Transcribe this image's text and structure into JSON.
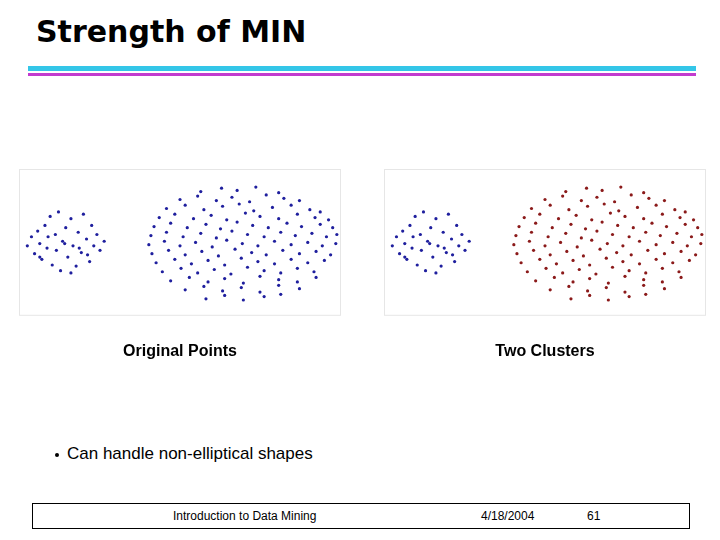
{
  "slide": {
    "title": "Strength of MIN",
    "bullets": [
      "Can handle non-elliptical shapes"
    ],
    "footer": {
      "text": "Introduction to Data Mining",
      "date": "4/18/2004",
      "page": 61
    }
  },
  "chart_data": [
    {
      "type": "scatter",
      "title": "Original Points",
      "xlim": [
        0,
        310
      ],
      "ylim": [
        0,
        130
      ],
      "grid": false,
      "tick_labels": false,
      "series": [
        {
          "color": "#1f1f9e",
          "marker": "circle",
          "x": [
            8,
            12,
            15,
            18,
            20,
            22,
            25,
            27,
            30,
            32,
            35,
            36,
            38,
            40,
            42,
            45,
            47,
            50,
            52,
            55,
            57,
            60,
            62,
            65,
            68,
            70,
            72,
            75,
            78,
            82,
            28,
            44,
            58,
            66,
            20,
            50
          ],
          "y": [
            62,
            70,
            55,
            75,
            64,
            50,
            80,
            60,
            88,
            45,
            72,
            58,
            92,
            40,
            66,
            78,
            52,
            86,
            62,
            44,
            74,
            56,
            90,
            68,
            48,
            80,
            62,
            72,
            58,
            66,
            70,
            64,
            60,
            54,
            52,
            38
          ]
        },
        {
          "color": "#1f1f9e",
          "marker": "circle",
          "x": [
            175,
            195,
            210,
            228,
            250,
            155,
            172,
            190,
            205,
            222,
            238,
            255,
            270,
            142,
            160,
            178,
            196,
            212,
            226,
            244,
            262,
            280,
            290,
            135,
            150,
            168,
            185,
            200,
            218,
            232,
            250,
            268,
            285,
            298,
            130,
            146,
            162,
            180,
            194,
            210,
            225,
            240,
            258,
            272,
            290,
            302,
            127,
            142,
            158,
            175,
            190,
            205,
            220,
            236,
            252,
            266,
            282,
            296,
            306,
            125,
            140,
            155,
            170,
            186,
            200,
            215,
            230,
            246,
            262,
            278,
            292,
            305,
            128,
            144,
            160,
            176,
            192,
            208,
            224,
            238,
            254,
            270,
            286,
            300,
            132,
            150,
            166,
            182,
            198,
            214,
            230,
            246,
            262,
            278,
            294,
            138,
            156,
            172,
            188,
            204,
            220,
            236,
            252,
            268,
            284,
            146,
            164,
            182,
            198,
            216,
            232,
            250,
            268,
            286,
            160,
            178,
            196,
            214,
            232,
            250,
            270,
            180,
            198,
            216,
            236,
            252
          ],
          "y": [
            110,
            113,
            111,
            114,
            109,
            103,
            106,
            102,
            105,
            101,
            107,
            104,
            102,
            95,
            98,
            94,
            97,
            99,
            93,
            96,
            98,
            94,
            92,
            87,
            90,
            86,
            89,
            85,
            91,
            88,
            86,
            90,
            87,
            85,
            79,
            82,
            78,
            81,
            77,
            83,
            80,
            78,
            82,
            79,
            81,
            78,
            71,
            74,
            70,
            73,
            69,
            75,
            72,
            70,
            74,
            71,
            73,
            70,
            72,
            63,
            66,
            62,
            65,
            61,
            67,
            64,
            62,
            66,
            63,
            65,
            62,
            64,
            55,
            58,
            54,
            57,
            53,
            59,
            56,
            54,
            58,
            55,
            57,
            54,
            47,
            50,
            46,
            49,
            45,
            51,
            48,
            46,
            50,
            47,
            49,
            39,
            42,
            38,
            41,
            37,
            43,
            40,
            38,
            42,
            39,
            31,
            34,
            30,
            33,
            29,
            35,
            32,
            30,
            34,
            23,
            26,
            22,
            25,
            21,
            27,
            24,
            15,
            18,
            14,
            17,
            19
          ]
        }
      ]
    },
    {
      "type": "scatter",
      "title": "Two Clusters",
      "xlim": [
        0,
        310
      ],
      "ylim": [
        0,
        130
      ],
      "grid": false,
      "tick_labels": false,
      "series": [
        {
          "color": "#1f1f9e",
          "marker": "circle",
          "x": [
            8,
            12,
            15,
            18,
            20,
            22,
            25,
            27,
            30,
            32,
            35,
            36,
            38,
            40,
            42,
            45,
            47,
            50,
            52,
            55,
            57,
            60,
            62,
            65,
            68,
            70,
            72,
            75,
            78,
            82,
            28,
            44,
            58,
            66,
            20,
            50
          ],
          "y": [
            62,
            70,
            55,
            75,
            64,
            50,
            80,
            60,
            88,
            45,
            72,
            58,
            92,
            40,
            66,
            78,
            52,
            86,
            62,
            44,
            74,
            56,
            90,
            68,
            48,
            80,
            62,
            72,
            58,
            66,
            70,
            64,
            60,
            54,
            52,
            38
          ]
        },
        {
          "color": "#8b1a1a",
          "marker": "circle",
          "x": [
            175,
            195,
            210,
            228,
            250,
            155,
            172,
            190,
            205,
            222,
            238,
            255,
            270,
            142,
            160,
            178,
            196,
            212,
            226,
            244,
            262,
            280,
            290,
            135,
            150,
            168,
            185,
            200,
            218,
            232,
            250,
            268,
            285,
            298,
            130,
            146,
            162,
            180,
            194,
            210,
            225,
            240,
            258,
            272,
            290,
            302,
            127,
            142,
            158,
            175,
            190,
            205,
            220,
            236,
            252,
            266,
            282,
            296,
            306,
            125,
            140,
            155,
            170,
            186,
            200,
            215,
            230,
            246,
            262,
            278,
            292,
            305,
            128,
            144,
            160,
            176,
            192,
            208,
            224,
            238,
            254,
            270,
            286,
            300,
            132,
            150,
            166,
            182,
            198,
            214,
            230,
            246,
            262,
            278,
            294,
            138,
            156,
            172,
            188,
            204,
            220,
            236,
            252,
            268,
            284,
            146,
            164,
            182,
            198,
            216,
            232,
            250,
            268,
            286,
            160,
            178,
            196,
            214,
            232,
            250,
            270,
            180,
            198,
            216,
            236,
            252
          ],
          "y": [
            110,
            113,
            111,
            114,
            109,
            103,
            106,
            102,
            105,
            101,
            107,
            104,
            102,
            95,
            98,
            94,
            97,
            99,
            93,
            96,
            98,
            94,
            92,
            87,
            90,
            86,
            89,
            85,
            91,
            88,
            86,
            90,
            87,
            85,
            79,
            82,
            78,
            81,
            77,
            83,
            80,
            78,
            82,
            79,
            81,
            78,
            71,
            74,
            70,
            73,
            69,
            75,
            72,
            70,
            74,
            71,
            73,
            70,
            72,
            63,
            66,
            62,
            65,
            61,
            67,
            64,
            62,
            66,
            63,
            65,
            62,
            64,
            55,
            58,
            54,
            57,
            53,
            59,
            56,
            54,
            58,
            55,
            57,
            54,
            47,
            50,
            46,
            49,
            45,
            51,
            48,
            46,
            50,
            47,
            49,
            39,
            42,
            38,
            41,
            37,
            43,
            40,
            38,
            42,
            39,
            31,
            34,
            30,
            33,
            29,
            35,
            32,
            30,
            34,
            23,
            26,
            22,
            25,
            21,
            27,
            24,
            15,
            18,
            14,
            17,
            19
          ]
        }
      ]
    }
  ]
}
